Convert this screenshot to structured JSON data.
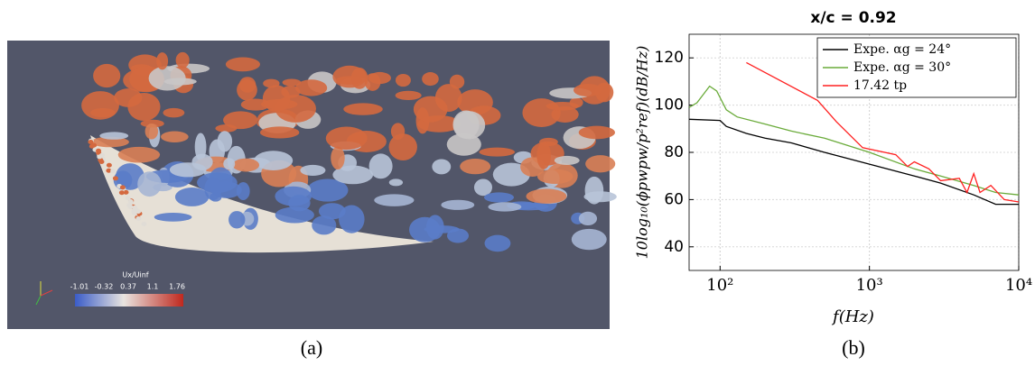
{
  "panel_a": {
    "caption": "(a)",
    "colorbar": {
      "title": "Ux/Uinf",
      "labels": [
        "-1.01",
        "-0.32",
        "0.37",
        "1.1",
        "1.76"
      ]
    }
  },
  "chart_data": {
    "type": "line",
    "caption": "(b)",
    "title": "x/c = 0.92",
    "xlabel": "f(Hz)",
    "ylabel": "10log₁₀(ϕpwpw/p²ref)(dB/Hz)",
    "xscale": "log",
    "xlim": [
      62,
      10000
    ],
    "ylim": [
      30,
      130
    ],
    "xticks": [
      {
        "value": 100,
        "label": "10²"
      },
      {
        "value": 1000,
        "label": "10³"
      },
      {
        "value": 10000,
        "label": "10⁴"
      }
    ],
    "yticks": [
      40,
      60,
      80,
      100,
      120
    ],
    "grid": true,
    "legend": "upper right",
    "series": [
      {
        "name": "Expe. αg = 24°",
        "color": "#000000",
        "x": [
          62,
          100,
          110,
          150,
          200,
          300,
          500,
          1000,
          2000,
          3000,
          5000,
          7000,
          10000
        ],
        "values": [
          94,
          93.5,
          91,
          88,
          86,
          84,
          80,
          75,
          70,
          67,
          62,
          58,
          58
        ]
      },
      {
        "name": "Expe. αg = 30°",
        "color": "#6aab3a",
        "x": [
          62,
          70,
          85,
          95,
          110,
          130,
          200,
          300,
          500,
          1000,
          2000,
          3000,
          5000,
          7000,
          10000
        ],
        "values": [
          99,
          101,
          108,
          106,
          98,
          95,
          92,
          89,
          86,
          80,
          73,
          70,
          66,
          63,
          62
        ]
      },
      {
        "name": "17.42 tp",
        "color": "#ff2020",
        "x": [
          150,
          450,
          600,
          900,
          1500,
          1800,
          2000,
          2500,
          3000,
          4000,
          4500,
          5000,
          5500,
          6500,
          8000,
          10000
        ],
        "values": [
          118,
          102,
          93,
          82,
          79,
          74,
          76,
          73,
          68,
          69,
          63,
          71,
          63,
          66,
          60,
          59
        ]
      }
    ]
  }
}
